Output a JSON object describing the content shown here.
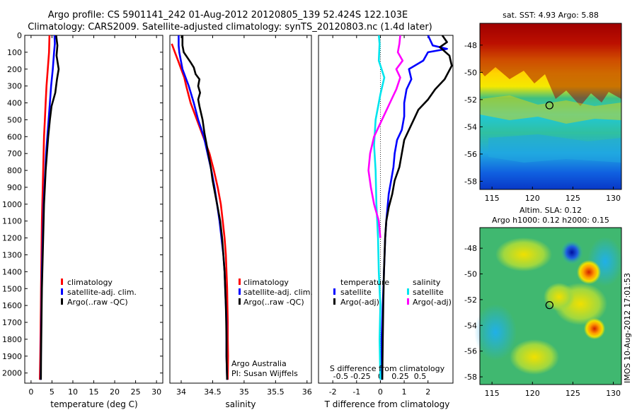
{
  "header": {
    "line1": "Argo profile: CS 5901141_242 01-Aug-2012 20120805_139 52.424S 122.103E",
    "line2": "Climatology: CARS2009. Satellite-adjusted climatology: synTS_20120803.nc (1.4d later)"
  },
  "footer": {
    "timestamp": "IMOS 10-Aug-2012 17:01:53",
    "argo_australia": "Argo Australia",
    "pi": "PI: Susan Wijffels"
  },
  "colors": {
    "climatology": "#ff0000",
    "satellite": "#0000ff",
    "argo": "#000000",
    "s_satellite": "#00e5ee",
    "s_argo": "#ff00ff"
  },
  "chart_data": [
    {
      "type": "line",
      "id": "temperature",
      "xlabel": "temperature (deg C)",
      "ylabel": "",
      "xlim": [
        -1.5,
        31.5
      ],
      "ylim": [
        2060,
        0
      ],
      "xticks": [
        0,
        5,
        10,
        15,
        20,
        25,
        30
      ],
      "yticks": [
        0,
        100,
        200,
        300,
        400,
        500,
        600,
        700,
        800,
        900,
        1000,
        1100,
        1200,
        1300,
        1400,
        1500,
        1600,
        1700,
        1800,
        1900,
        2000
      ],
      "legend": [
        "climatology",
        "satellite-adj. clim.",
        "Argo(..raw -QC)"
      ],
      "legend_position": "center",
      "series": [
        {
          "name": "climatology",
          "color": "#ff0000",
          "points": [
            [
              4.4,
              0
            ],
            [
              4.3,
              100
            ],
            [
              4.0,
              200
            ],
            [
              3.7,
              300
            ],
            [
              3.5,
              400
            ],
            [
              3.3,
              500
            ],
            [
              3.1,
              600
            ],
            [
              3.0,
              700
            ],
            [
              2.9,
              800
            ],
            [
              2.8,
              900
            ],
            [
              2.7,
              1000
            ],
            [
              2.6,
              1100
            ],
            [
              2.55,
              1200
            ],
            [
              2.5,
              1300
            ],
            [
              2.45,
              1400
            ],
            [
              2.4,
              1500
            ],
            [
              2.35,
              1600
            ],
            [
              2.3,
              1700
            ],
            [
              2.25,
              1800
            ],
            [
              2.2,
              1900
            ],
            [
              2.1,
              2040
            ]
          ]
        },
        {
          "name": "satellite-adj. clim.",
          "color": "#0000ff",
          "points": [
            [
              5.6,
              0
            ],
            [
              5.7,
              50
            ],
            [
              5.5,
              100
            ],
            [
              5.2,
              200
            ],
            [
              4.8,
              300
            ],
            [
              4.5,
              400
            ],
            [
              4.2,
              500
            ],
            [
              3.9,
              600
            ],
            [
              3.6,
              700
            ],
            [
              3.4,
              800
            ],
            [
              3.2,
              900
            ],
            [
              3.0,
              1000
            ],
            [
              2.9,
              1100
            ],
            [
              2.8,
              1200
            ],
            [
              2.7,
              1300
            ],
            [
              2.6,
              1400
            ],
            [
              2.55,
              1500
            ],
            [
              2.5,
              1600
            ],
            [
              2.45,
              1700
            ],
            [
              2.4,
              1800
            ],
            [
              2.35,
              1900
            ],
            [
              2.3,
              2040
            ]
          ]
        },
        {
          "name": "Argo(..raw -QC)",
          "color": "#000000",
          "points": [
            [
              6.0,
              0
            ],
            [
              6.3,
              60
            ],
            [
              6.1,
              120
            ],
            [
              6.6,
              200
            ],
            [
              6.2,
              260
            ],
            [
              5.8,
              340
            ],
            [
              4.9,
              420
            ],
            [
              4.5,
              500
            ],
            [
              4.1,
              600
            ],
            [
              3.8,
              700
            ],
            [
              3.5,
              800
            ],
            [
              3.3,
              900
            ],
            [
              3.1,
              1000
            ],
            [
              3.0,
              1100
            ],
            [
              2.9,
              1200
            ],
            [
              2.8,
              1300
            ],
            [
              2.7,
              1400
            ],
            [
              2.6,
              1500
            ],
            [
              2.55,
              1600
            ],
            [
              2.5,
              1700
            ],
            [
              2.45,
              1800
            ],
            [
              2.4,
              1900
            ],
            [
              2.35,
              2040
            ]
          ]
        }
      ]
    },
    {
      "type": "line",
      "id": "salinity",
      "xlabel": "salinity",
      "ylabel": "",
      "xlim": [
        33.82,
        36.07
      ],
      "ylim": [
        2060,
        0
      ],
      "xticks": [
        34,
        34.5,
        35,
        35.5,
        36
      ],
      "xtick_labels": [
        "34",
        "34.5",
        "35",
        "35.5",
        "36"
      ],
      "legend": [
        "climatology",
        "satellite-adj. clim.",
        "Argo(..raw -QC)"
      ],
      "legend_position": "center-right",
      "series": [
        {
          "name": "climatology",
          "color": "#ff0000",
          "points": [
            [
              33.85,
              50
            ],
            [
              33.9,
              100
            ],
            [
              33.95,
              150
            ],
            [
              34.0,
              200
            ],
            [
              34.05,
              250
            ],
            [
              34.08,
              300
            ],
            [
              34.15,
              400
            ],
            [
              34.25,
              500
            ],
            [
              34.35,
              600
            ],
            [
              34.45,
              700
            ],
            [
              34.52,
              800
            ],
            [
              34.58,
              900
            ],
            [
              34.63,
              1000
            ],
            [
              34.66,
              1100
            ],
            [
              34.69,
              1200
            ],
            [
              34.71,
              1300
            ],
            [
              34.72,
              1400
            ],
            [
              34.73,
              1500
            ],
            [
              34.735,
              1600
            ],
            [
              34.74,
              1700
            ],
            [
              34.74,
              1800
            ],
            [
              34.745,
              1900
            ],
            [
              34.74,
              2040
            ]
          ]
        },
        {
          "name": "satellite-adj. clim.",
          "color": "#0000ff",
          "points": [
            [
              33.96,
              0
            ],
            [
              33.96,
              60
            ],
            [
              33.97,
              100
            ],
            [
              34.02,
              200
            ],
            [
              34.12,
              300
            ],
            [
              34.2,
              400
            ],
            [
              34.27,
              500
            ],
            [
              34.36,
              600
            ],
            [
              34.42,
              700
            ],
            [
              34.48,
              800
            ],
            [
              34.53,
              900
            ],
            [
              34.57,
              1000
            ],
            [
              34.61,
              1100
            ],
            [
              34.64,
              1200
            ],
            [
              34.67,
              1300
            ],
            [
              34.69,
              1400
            ],
            [
              34.7,
              1500
            ],
            [
              34.71,
              1600
            ],
            [
              34.72,
              1700
            ],
            [
              34.72,
              1800
            ],
            [
              34.72,
              1900
            ],
            [
              34.73,
              2040
            ]
          ]
        },
        {
          "name": "Argo(..raw -QC)",
          "color": "#000000",
          "points": [
            [
              34.02,
              0
            ],
            [
              34.02,
              60
            ],
            [
              34.04,
              100
            ],
            [
              34.15,
              160
            ],
            [
              34.2,
              190
            ],
            [
              34.23,
              230
            ],
            [
              34.29,
              260
            ],
            [
              34.27,
              300
            ],
            [
              34.3,
              340
            ],
            [
              34.27,
              380
            ],
            [
              34.29,
              420
            ],
            [
              34.34,
              500
            ],
            [
              34.37,
              580
            ],
            [
              34.4,
              640
            ],
            [
              34.43,
              700
            ],
            [
              34.47,
              780
            ],
            [
              34.5,
              860
            ],
            [
              34.54,
              940
            ],
            [
              34.58,
              1020
            ],
            [
              34.62,
              1100
            ],
            [
              34.65,
              1200
            ],
            [
              34.67,
              1300
            ],
            [
              34.69,
              1400
            ],
            [
              34.7,
              1500
            ],
            [
              34.71,
              1600
            ],
            [
              34.715,
              1700
            ],
            [
              34.72,
              1800
            ],
            [
              34.72,
              1900
            ],
            [
              34.73,
              2040
            ]
          ]
        }
      ]
    },
    {
      "type": "line",
      "id": "difference",
      "xlabel": "T difference from climatology",
      "xlabel_top": "S difference from climatology",
      "ylabel": "",
      "xlim": [
        -2.6,
        3.05
      ],
      "ylim": [
        2060,
        0
      ],
      "xticks": [
        -2,
        -1,
        0,
        1,
        2
      ],
      "s_ticks": [
        -0.5,
        -0.25,
        0,
        0.25,
        0.5
      ],
      "s_tick_labels": [
        "-0.5",
        "-0.25",
        "0",
        "0.25",
        "0.5"
      ],
      "legend_temperature_title": "temperature",
      "legend_salinity_title": "salinity",
      "legend": [
        "satellite",
        "Argo(-adj)",
        "satellite",
        "Argo(-adj)"
      ],
      "series": [
        {
          "name": "satellite",
          "group": "temperature",
          "color": "#0000ff",
          "points": [
            [
              2.0,
              0
            ],
            [
              2.2,
              60
            ],
            [
              2.8,
              80
            ],
            [
              2.0,
              100
            ],
            [
              1.8,
              150
            ],
            [
              1.2,
              200
            ],
            [
              1.3,
              260
            ],
            [
              1.1,
              320
            ],
            [
              1.0,
              400
            ],
            [
              1.0,
              480
            ],
            [
              0.9,
              560
            ],
            [
              0.7,
              620
            ],
            [
              0.6,
              700
            ],
            [
              0.55,
              780
            ],
            [
              0.45,
              860
            ],
            [
              0.35,
              940
            ],
            [
              0.3,
              1020
            ],
            [
              0.25,
              1100
            ],
            [
              0.2,
              1200
            ],
            [
              0.15,
              1400
            ],
            [
              0.1,
              1600
            ],
            [
              0.05,
              1800
            ],
            [
              0.05,
              2040
            ]
          ]
        },
        {
          "name": "Argo(-adj)",
          "group": "temperature",
          "color": "#000000",
          "points": [
            [
              2.6,
              0
            ],
            [
              2.8,
              40
            ],
            [
              2.5,
              70
            ],
            [
              2.9,
              120
            ],
            [
              3.0,
              180
            ],
            [
              2.7,
              260
            ],
            [
              2.3,
              320
            ],
            [
              2.0,
              380
            ],
            [
              1.6,
              440
            ],
            [
              1.4,
              500
            ],
            [
              1.2,
              560
            ],
            [
              1.0,
              620
            ],
            [
              0.9,
              700
            ],
            [
              0.8,
              780
            ],
            [
              0.6,
              860
            ],
            [
              0.5,
              940
            ],
            [
              0.35,
              1020
            ],
            [
              0.25,
              1100
            ],
            [
              0.2,
              1200
            ],
            [
              0.15,
              1400
            ],
            [
              0.12,
              1600
            ],
            [
              0.1,
              1800
            ],
            [
              0.08,
              2040
            ]
          ]
        },
        {
          "name": "satellite",
          "group": "salinity",
          "color": "#00e5ee",
          "points": [
            [
              -0.02,
              0
            ],
            [
              -0.01,
              50
            ],
            [
              -0.02,
              150
            ],
            [
              0.05,
              250
            ],
            [
              0.0,
              350
            ],
            [
              -0.06,
              500
            ],
            [
              -0.08,
              650
            ],
            [
              -0.06,
              800
            ],
            [
              -0.05,
              1000
            ],
            [
              -0.03,
              1200
            ],
            [
              -0.02,
              1400
            ],
            [
              0.0,
              1600
            ],
            [
              -0.01,
              1800
            ],
            [
              0.0,
              2040
            ]
          ]
        },
        {
          "name": "Argo(-adj)",
          "group": "salinity",
          "color": "#ff00ff",
          "points": [
            [
              0.25,
              0
            ],
            [
              0.24,
              50
            ],
            [
              0.22,
              100
            ],
            [
              0.28,
              150
            ],
            [
              0.2,
              200
            ],
            [
              0.25,
              250
            ],
            [
              0.2,
              320
            ],
            [
              0.12,
              400
            ],
            [
              0.02,
              500
            ],
            [
              -0.08,
              600
            ],
            [
              -0.13,
              700
            ],
            [
              -0.15,
              800
            ],
            [
              -0.12,
              900
            ],
            [
              -0.08,
              1000
            ],
            [
              -0.02,
              1100
            ],
            [
              0.0,
              1200
            ]
          ]
        }
      ]
    },
    {
      "type": "heatmap",
      "id": "sst_map",
      "title": "sat. SST: 4.93 Argo: 5.88",
      "xlim": [
        113.5,
        131
      ],
      "ylim": [
        -58.6,
        -46.4
      ],
      "xticks": [
        115,
        120,
        125,
        130
      ],
      "yticks": [
        -48,
        -50,
        -52,
        -54,
        -56,
        -58
      ],
      "argo_position": [
        122.103,
        -52.424
      ]
    },
    {
      "type": "heatmap",
      "id": "sla_map",
      "title_line1": "Altim. SLA: 0.12",
      "title_line2": "Argo h1000: 0.12 h2000: 0.15",
      "xlim": [
        113.5,
        131
      ],
      "ylim": [
        -58.6,
        -46.4
      ],
      "xticks": [
        115,
        120,
        125,
        130
      ],
      "yticks": [
        -48,
        -50,
        -52,
        -54,
        -56,
        -58
      ],
      "argo_position": [
        122.103,
        -52.424
      ]
    }
  ]
}
